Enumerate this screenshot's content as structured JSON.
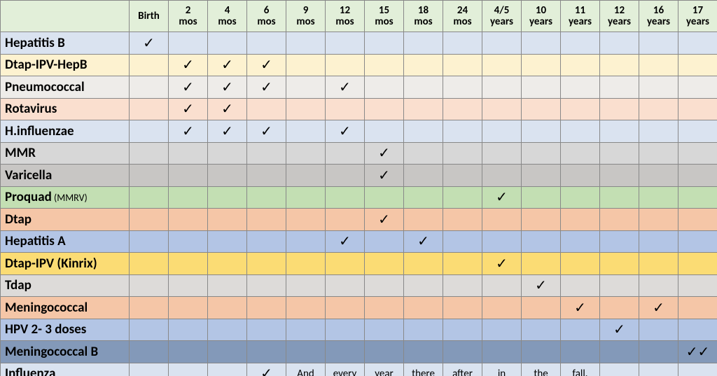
{
  "columns": [
    {
      "l1": "",
      "l2": "Birth"
    },
    {
      "l1": "2",
      "l2": "mos"
    },
    {
      "l1": "4",
      "l2": "mos"
    },
    {
      "l1": "6",
      "l2": "mos"
    },
    {
      "l1": "9",
      "l2": "mos"
    },
    {
      "l1": "12",
      "l2": "mos"
    },
    {
      "l1": "15",
      "l2": "mos"
    },
    {
      "l1": "18",
      "l2": "mos"
    },
    {
      "l1": "24",
      "l2": "mos"
    },
    {
      "l1": "4/5",
      "l2": "years"
    },
    {
      "l1": "10",
      "l2": "years"
    },
    {
      "l1": "11",
      "l2": "years"
    },
    {
      "l1": "12",
      "l2": "years"
    },
    {
      "l1": "16",
      "l2": "years"
    },
    {
      "l1": "17",
      "l2": "years"
    }
  ],
  "check": "✓",
  "doublecheck": "✓✓",
  "label_col_width": 184,
  "data_col_width": 56,
  "rows": [
    {
      "label": "Hepatitis B",
      "color": "#dae3f0",
      "cells": [
        "c",
        "",
        "",
        "",
        "",
        "",
        "",
        "",
        "",
        "",
        "",
        "",
        "",
        "",
        ""
      ]
    },
    {
      "label": "Dtap-IPV-HepB",
      "color": "#fdf2d0",
      "cells": [
        "",
        "c",
        "c",
        "c",
        "",
        "",
        "",
        "",
        "",
        "",
        "",
        "",
        "",
        "",
        ""
      ]
    },
    {
      "label": "Pneumococcal",
      "color": "#eeece9",
      "cells": [
        "",
        "c",
        "c",
        "c",
        "",
        "c",
        "",
        "",
        "",
        "",
        "",
        "",
        "",
        "",
        ""
      ]
    },
    {
      "label": "Rotavirus",
      "color": "#fadfcf",
      "cells": [
        "",
        "c",
        "c",
        "",
        "",
        "",
        "",
        "",
        "",
        "",
        "",
        "",
        "",
        "",
        ""
      ]
    },
    {
      "label": "H.influenzae",
      "color": "#dae3f0",
      "cells": [
        "",
        "c",
        "c",
        "c",
        "",
        "c",
        "",
        "",
        "",
        "",
        "",
        "",
        "",
        "",
        ""
      ]
    },
    {
      "label": "MMR",
      "color": "#d7d7d7",
      "cells": [
        "",
        "",
        "",
        "",
        "",
        "",
        "c",
        "",
        "",
        "",
        "",
        "",
        "",
        "",
        ""
      ]
    },
    {
      "label": "Varicella",
      "color": "#c8c6c4",
      "cells": [
        "",
        "",
        "",
        "",
        "",
        "",
        "c",
        "",
        "",
        "",
        "",
        "",
        "",
        "",
        ""
      ]
    },
    {
      "label": "Proquad",
      "sublabel": "(MMRV)",
      "color": "#c3dfb3",
      "cells": [
        "",
        "",
        "",
        "",
        "",
        "",
        "",
        "",
        "",
        "c",
        "",
        "",
        "",
        "",
        ""
      ]
    },
    {
      "label": "Dtap",
      "color": "#f5c6a7",
      "cells": [
        "",
        "",
        "",
        "",
        "",
        "",
        "c",
        "",
        "",
        "",
        "",
        "",
        "",
        "",
        ""
      ]
    },
    {
      "label": "Hepatitis A",
      "color": "#b3c5e5",
      "cells": [
        "",
        "",
        "",
        "",
        "",
        "c",
        "",
        "c",
        "",
        "",
        "",
        "",
        "",
        "",
        ""
      ]
    },
    {
      "label": "Dtap-IPV (Kinrix)",
      "color": "#fbdc74",
      "cells": [
        "",
        "",
        "",
        "",
        "",
        "",
        "",
        "",
        "",
        "c",
        "",
        "",
        "",
        "",
        ""
      ]
    },
    {
      "label": "Tdap",
      "color": "#dddbd9",
      "cells": [
        "",
        "",
        "",
        "",
        "",
        "",
        "",
        "",
        "",
        "",
        "c",
        "",
        "",
        "",
        ""
      ]
    },
    {
      "label": "Meningococcal",
      "color": "#f5c6a7",
      "cells": [
        "",
        "",
        "",
        "",
        "",
        "",
        "",
        "",
        "",
        "",
        "",
        "c",
        "",
        "c",
        ""
      ]
    },
    {
      "label": "HPV 2- 3 doses",
      "color": "#b3c5e5",
      "cells": [
        "",
        "",
        "",
        "",
        "",
        "",
        "",
        "",
        "",
        "",
        "",
        "",
        "c",
        "",
        ""
      ]
    },
    {
      "label": "Meningococcal B",
      "color": "#8399b9",
      "cells": [
        "",
        "",
        "",
        "",
        "",
        "",
        "",
        "",
        "",
        "",
        "",
        "",
        "",
        "",
        "cc"
      ]
    },
    {
      "label": "Influenza",
      "color": "#dae3f0",
      "cells": [
        "",
        "",
        "",
        "c",
        "And",
        "every",
        "year",
        "there",
        "after",
        "in",
        "the",
        "fall.",
        "",
        "",
        ""
      ]
    }
  ]
}
